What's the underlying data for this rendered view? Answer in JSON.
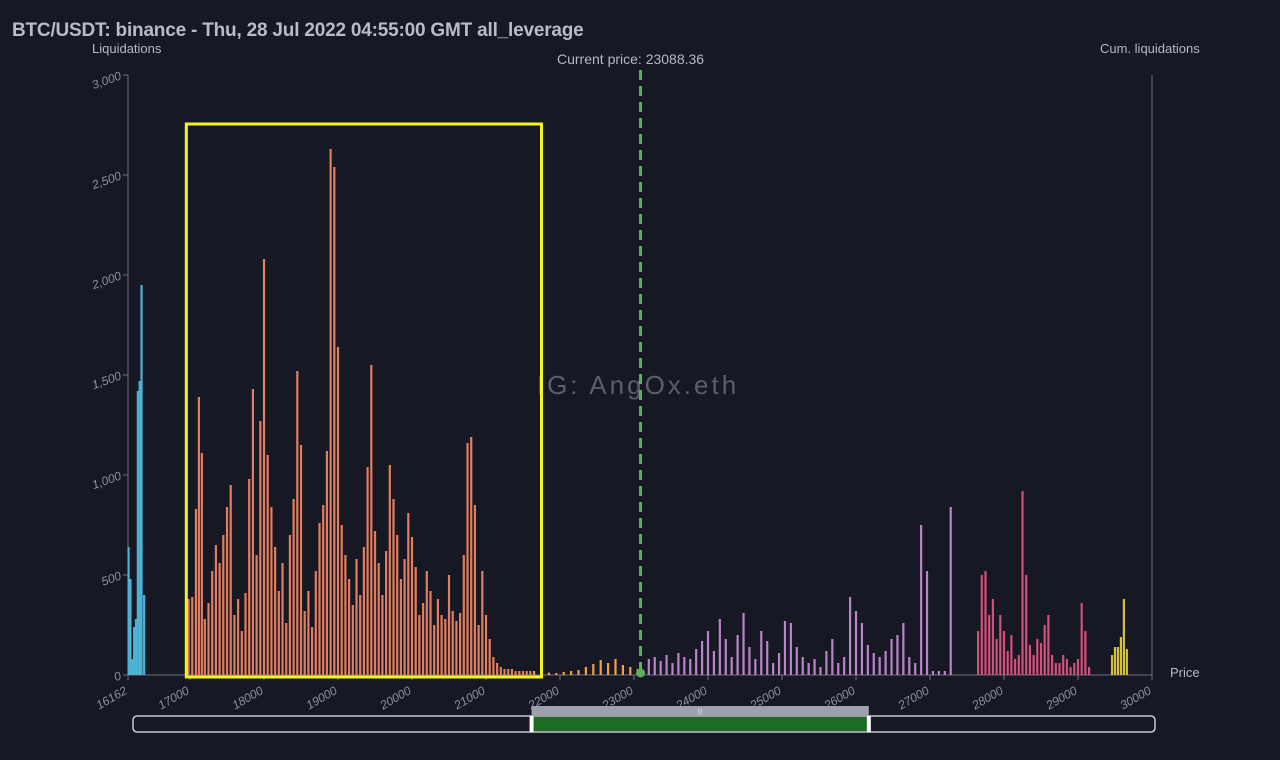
{
  "header": {
    "title": "BTC/USDT: binance - Thu, 28 Jul 2022 04:55:00 GMT all_leverage"
  },
  "annotations": {
    "current_price_label": "Current price: 23088.36",
    "watermark": "IG: AngOx.eth"
  },
  "chart_data": {
    "type": "bar",
    "title": "BTC/USDT: binance - Thu, 28 Jul 2022 04:55:00 GMT all_leverage",
    "ylabel": "Liquidations",
    "y2label": "Cum. liquidations",
    "xlabel": "Price",
    "xlim": [
      16162,
      30000
    ],
    "ylim": [
      0,
      3000
    ],
    "x_ticks": [
      "16162",
      "17000",
      "18000",
      "19000",
      "20000",
      "21000",
      "22000",
      "23000",
      "24000",
      "25000",
      "26000",
      "27000",
      "28000",
      "29000",
      "30000"
    ],
    "y_ticks": [
      "0",
      "500",
      "1,000",
      "1,500",
      "2,000",
      "2,500",
      "3,000"
    ],
    "current_price": 23088.36,
    "highlight_range": [
      16950,
      21750
    ],
    "grid": false,
    "series": [
      {
        "color": "#4bb3d6",
        "x": [
          16170,
          16195,
          16220,
          16245,
          16270,
          16295,
          16320,
          16345,
          16380
        ],
        "values": [
          640,
          480,
          80,
          240,
          280,
          1420,
          1470,
          1950,
          400
        ]
      },
      {
        "color": "#e27d5f",
        "x": [
          16980,
          17030,
          17080,
          17120,
          17160,
          17200,
          17250,
          17300,
          17350,
          17400,
          17450,
          17500,
          17550,
          17600,
          17650,
          17700,
          17750,
          17800,
          17850,
          17900,
          17950,
          18000,
          18050,
          18100,
          18150,
          18200,
          18250,
          18300,
          18350,
          18400,
          18450,
          18500,
          18550,
          18600,
          18650,
          18700,
          18750,
          18800,
          18850,
          18900,
          18950,
          19000,
          19050,
          19100,
          19150,
          19200,
          19250,
          19300,
          19350,
          19400,
          19450,
          19500,
          19550,
          19600,
          19650,
          19700,
          19750,
          19800,
          19850,
          19900,
          19950,
          20000,
          20050,
          20100,
          20150,
          20200,
          20250,
          20300,
          20350,
          20400,
          20450,
          20500,
          20550,
          20600,
          20650,
          20700,
          20750,
          20800,
          20850,
          20900,
          20950,
          21000,
          21050,
          21100,
          21150,
          21200,
          21250,
          21300,
          21350,
          21400,
          21450,
          21500,
          21550,
          21600
        ],
        "values": [
          380,
          390,
          830,
          1390,
          1110,
          280,
          360,
          520,
          650,
          560,
          700,
          840,
          950,
          300,
          380,
          220,
          410,
          980,
          1430,
          600,
          1270,
          2080,
          1100,
          840,
          640,
          420,
          560,
          260,
          700,
          880,
          1520,
          1150,
          320,
          420,
          240,
          520,
          760,
          850,
          1120,
          2630,
          2540,
          1640,
          750,
          600,
          480,
          350,
          580,
          400,
          640,
          1040,
          1550,
          720,
          560,
          400,
          620,
          1050,
          880,
          700,
          480,
          580,
          810,
          690,
          540,
          300,
          360,
          520,
          420,
          250,
          380,
          300,
          280,
          500,
          320,
          270,
          310,
          600,
          1160,
          1190,
          850,
          250,
          520,
          300,
          180,
          90,
          60,
          40,
          30,
          30,
          30,
          20,
          20,
          20,
          20,
          20
        ]
      },
      {
        "color": "#f0a045",
        "x": [
          21650,
          21750,
          21850,
          21950,
          22050,
          22150,
          22250,
          22350,
          22450,
          22550,
          22650,
          22750,
          22850,
          22950,
          23050
        ],
        "values": [
          20,
          15,
          12,
          10,
          15,
          20,
          25,
          40,
          55,
          75,
          60,
          80,
          50,
          40,
          30
        ]
      },
      {
        "color": "#b985c8",
        "x": [
          23200,
          23280,
          23360,
          23440,
          23520,
          23600,
          23680,
          23760,
          23840,
          23920,
          24000,
          24080,
          24160,
          24240,
          24320,
          24400,
          24480,
          24560,
          24640,
          24720,
          24800,
          24880,
          24960,
          25040,
          25120,
          25200,
          25280,
          25360,
          25440,
          25520,
          25600,
          25680,
          25760,
          25840,
          25920,
          26000,
          26080,
          26160,
          26240,
          26320,
          26400,
          26480,
          26560,
          26640,
          26720,
          26800,
          26880,
          26960,
          27040,
          27120,
          27200,
          27280
        ],
        "values": [
          80,
          90,
          70,
          100,
          60,
          110,
          90,
          80,
          130,
          170,
          220,
          120,
          280,
          180,
          90,
          200,
          310,
          140,
          80,
          220,
          170,
          60,
          110,
          270,
          260,
          140,
          90,
          60,
          80,
          40,
          120,
          180,
          60,
          90,
          390,
          320,
          260,
          150,
          110,
          90,
          120,
          180,
          200,
          260,
          90,
          60,
          750,
          520,
          20,
          20,
          20,
          840
        ]
      },
      {
        "color": "#d2507a",
        "x": [
          27650,
          27700,
          27750,
          27800,
          27850,
          27900,
          27950,
          28000,
          28050,
          28100,
          28150,
          28200,
          28250,
          28300,
          28350,
          28400,
          28450,
          28500,
          28550,
          28600,
          28650,
          28700,
          28750,
          28800,
          28850,
          28900,
          28950,
          29000,
          29050,
          29100,
          29150
        ],
        "values": [
          220,
          500,
          520,
          300,
          380,
          180,
          300,
          220,
          120,
          200,
          80,
          100,
          920,
          500,
          150,
          100,
          180,
          160,
          250,
          300,
          100,
          60,
          60,
          100,
          80,
          40,
          60,
          80,
          360,
          220,
          40
        ]
      },
      {
        "color": "#d6c03d",
        "x": [
          29460,
          29500,
          29540,
          29580,
          29620,
          29660
        ],
        "values": [
          100,
          140,
          140,
          190,
          380,
          130
        ]
      }
    ]
  },
  "range_slider": {
    "handle_label": "|||",
    "selected_range": [
      0.39,
      0.72
    ]
  }
}
